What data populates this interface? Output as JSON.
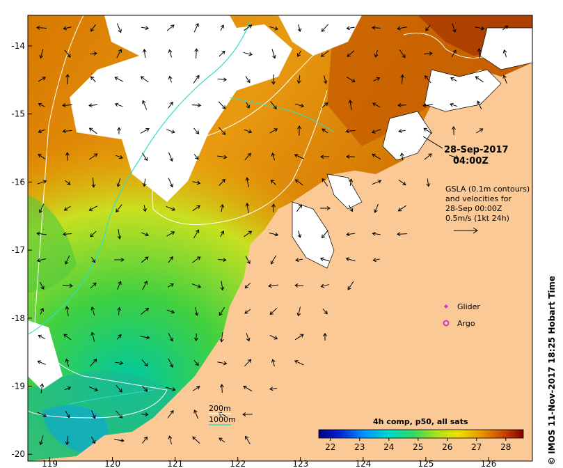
{
  "map": {
    "lon_ticks": [
      "119",
      "120",
      "121",
      "122",
      "123",
      "124",
      "125",
      "126"
    ],
    "lat_ticks": [
      "-14",
      "-15",
      "-16",
      "-17",
      "-18",
      "-19",
      "-20"
    ],
    "lon_range": [
      118.65,
      126.7
    ],
    "lat_range": [
      -20.1,
      -13.55
    ]
  },
  "annotations": {
    "date_line1": "28-Sep-2017",
    "date_line2": "04:00Z",
    "gsla_line1": "GSLA (0.1m contours)",
    "gsla_line2": "and velocities for",
    "gsla_line3": "28-Sep 00:00Z",
    "gsla_line4": "0.5m/s (1kt 24h)",
    "glider_label": "Glider",
    "argo_label": "Argo",
    "contour_200": "200m",
    "contour_1000": "1000m"
  },
  "colorbar": {
    "title": "4h comp, p50, all sats",
    "ticks": [
      "22",
      "23",
      "24",
      "25",
      "26",
      "27",
      "28"
    ],
    "range": [
      21.6,
      28.6
    ]
  },
  "credit": "© IMOS 11-Nov-2017 18:25 Hobart Time",
  "colors": {
    "land": "#fbc996",
    "contour_200": "#ffffff",
    "contour_1000": "#33ddcc",
    "glider_marker": "#cc33cc",
    "argo_marker": "#cc33cc"
  },
  "icons": {
    "glider": "diamond-marker",
    "argo": "circle-marker",
    "scale_arrow": "arrow-right"
  }
}
